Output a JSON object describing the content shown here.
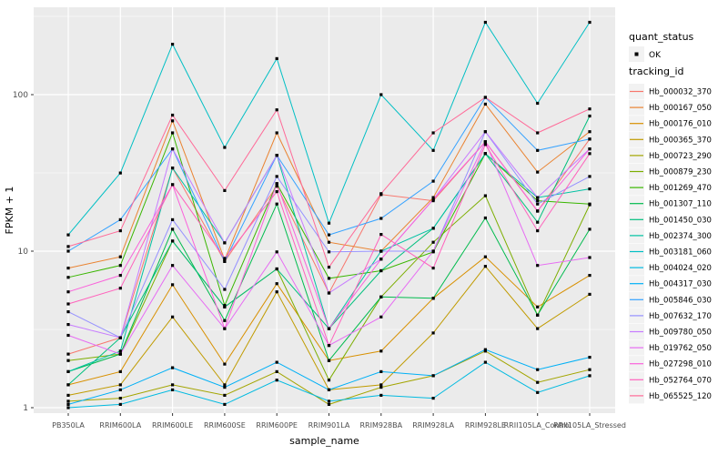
{
  "legend": {
    "quant_status": {
      "title": "quant_status",
      "items": [
        {
          "label": "OK",
          "marker": "point-icon"
        }
      ]
    },
    "tracking": {
      "title": "tracking_id"
    }
  },
  "colors": {
    "panel_bg": "#EBEBEB",
    "grid": "#FFFFFF",
    "tick_label": "#4D4D4D",
    "axis_title": "#000000",
    "point": "#000000",
    "legend_key_bg": "#F2F2F2"
  },
  "chart_data": {
    "type": "line",
    "title": "",
    "xlabel": "sample_name",
    "ylabel": "FPKM + 1",
    "y_scale": "log10",
    "y_ticks": [
      1,
      10,
      100
    ],
    "y_tick_labels": [
      "1",
      "10",
      "100"
    ],
    "y_minor_breaks": [
      3.162,
      31.62,
      316.2
    ],
    "ylim": [
      1,
      375
    ],
    "grid": true,
    "legend_position": "right",
    "quant_status_value": "OK",
    "categories": [
      "PB350LA",
      "RRIM600LA",
      "RRIM600LE",
      "RRIM600SE",
      "RRIM600PE",
      "RRIM901LA",
      "RRIM928BA",
      "RRIM928LA",
      "RRIM928LE",
      "RRII105LA_Control",
      "RRII105LA_Stressed"
    ],
    "series": [
      {
        "name": "Hb_000032_370",
        "color": "#F8766D",
        "values": [
          2.2,
          2.8,
          34,
          8.6,
          26,
          5.4,
          23,
          21,
          50,
          18,
          52
        ]
      },
      {
        "name": "Hb_000167_050",
        "color": "#EA8331",
        "values": [
          7.8,
          9.2,
          68,
          8.8,
          57,
          11.4,
          10,
          22,
          87,
          32,
          58
        ]
      },
      {
        "name": "Hb_000176_010",
        "color": "#D89000",
        "values": [
          1.4,
          1.7,
          6.1,
          1.9,
          6.2,
          2.0,
          2.3,
          5.0,
          9.2,
          4.4,
          7.0
        ]
      },
      {
        "name": "Hb_000365_370",
        "color": "#C09B00",
        "values": [
          1.2,
          1.4,
          3.8,
          1.4,
          5.5,
          1.3,
          1.4,
          3.0,
          8.0,
          3.2,
          5.3
        ]
      },
      {
        "name": "Hb_000723_290",
        "color": "#A3A500",
        "values": [
          1.1,
          1.15,
          1.4,
          1.2,
          1.7,
          1.05,
          1.35,
          1.6,
          2.3,
          1.45,
          1.75
        ]
      },
      {
        "name": "Hb_000879_230",
        "color": "#7CAE00",
        "values": [
          2.0,
          2.2,
          11.6,
          4.4,
          7.7,
          1.5,
          5.1,
          11.4,
          22.6,
          3.9,
          19.8
        ]
      },
      {
        "name": "Hb_001269_470",
        "color": "#39B600",
        "values": [
          6.8,
          8.1,
          57,
          4.5,
          27,
          6.7,
          7.5,
          9.9,
          42,
          21,
          20
        ]
      },
      {
        "name": "Hb_001307_110",
        "color": "#00BB4E",
        "values": [
          1.7,
          2.2,
          13.8,
          3.6,
          20,
          2.0,
          5.1,
          5.0,
          16.3,
          3.9,
          13.8
        ]
      },
      {
        "name": "Hb_001450_030",
        "color": "#00BF7D",
        "values": [
          1.4,
          2.8,
          11.6,
          4.4,
          7.7,
          3.2,
          7.5,
          14,
          42,
          15.3,
          73
        ]
      },
      {
        "name": "Hb_002374_300",
        "color": "#00C1A3",
        "values": [
          1.7,
          2.3,
          34,
          11.3,
          41,
          3.2,
          10,
          14,
          42,
          22,
          25
        ]
      },
      {
        "name": "Hb_003181_060",
        "color": "#00BFC4",
        "values": [
          12.7,
          31.6,
          210,
          46,
          170,
          15.1,
          100,
          44,
          290,
          88,
          290
        ]
      },
      {
        "name": "Hb_004024_020",
        "color": "#00BAE0",
        "values": [
          1.0,
          1.05,
          1.3,
          1.05,
          1.5,
          1.1,
          1.2,
          1.15,
          1.95,
          1.25,
          1.6
        ]
      },
      {
        "name": "Hb_004317_030",
        "color": "#00B0F6",
        "values": [
          1.05,
          1.3,
          1.8,
          1.35,
          1.95,
          1.3,
          1.7,
          1.6,
          2.35,
          1.75,
          2.1
        ]
      },
      {
        "name": "Hb_005846_030",
        "color": "#35A2FF",
        "values": [
          10,
          15.9,
          45,
          8.6,
          41,
          12.7,
          16.2,
          28,
          96,
          44,
          52
        ]
      },
      {
        "name": "Hb_007632_170",
        "color": "#9590FF",
        "values": [
          4.1,
          2.8,
          15.9,
          5.7,
          30,
          9.9,
          10,
          10,
          58,
          20,
          30
        ]
      },
      {
        "name": "Hb_009780_050",
        "color": "#C77CFF",
        "values": [
          3.4,
          2.8,
          45,
          11.3,
          41,
          5.4,
          8.9,
          21.4,
          58,
          22,
          45
        ]
      },
      {
        "name": "Hb_019762_050",
        "color": "#E76BF3",
        "values": [
          2.9,
          2.2,
          8.1,
          3.2,
          9.9,
          2.5,
          3.8,
          10,
          50,
          8.1,
          9.1
        ]
      },
      {
        "name": "Hb_027298_010",
        "color": "#FA62DB",
        "values": [
          5.5,
          7.0,
          26.6,
          3.2,
          27,
          3.2,
          8.9,
          21.4,
          50,
          18.1,
          45
        ]
      },
      {
        "name": "Hb_052764_070",
        "color": "#FF62BC",
        "values": [
          4.6,
          5.8,
          26.6,
          9.0,
          24,
          2.5,
          12.8,
          7.8,
          48,
          13.5,
          42
        ]
      },
      {
        "name": "Hb_065525_120",
        "color": "#FF6A98",
        "values": [
          10.7,
          13.5,
          74,
          24.4,
          80,
          7.9,
          23.3,
          57,
          96,
          57,
          81
        ]
      }
    ]
  }
}
